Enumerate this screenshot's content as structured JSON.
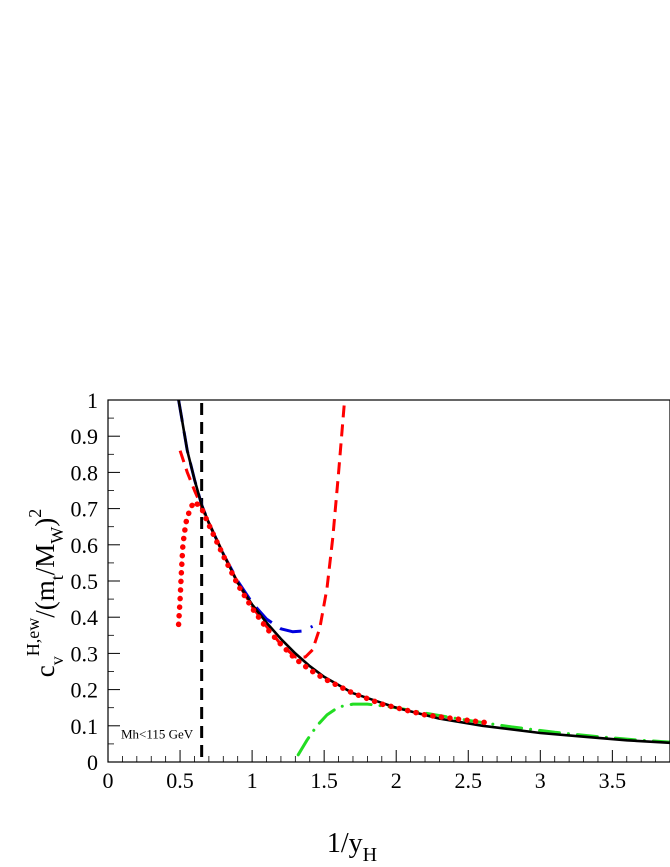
{
  "chart_data": {
    "type": "line",
    "xlabel": {
      "main": "1/y",
      "sub": "H"
    },
    "ylabel": {
      "c": "c",
      "c_sub": "v",
      "c_sup": "H,ew",
      "mid1": "/(m",
      "t_sub": "t",
      "mid2": "/M",
      "w_sub": "W",
      "close": ")",
      "sq": "2"
    },
    "xlim": [
      0,
      3.9
    ],
    "ylim": [
      0,
      1
    ],
    "x_ticks": [
      "0",
      "0.5",
      "1",
      "1.5",
      "2",
      "2.5",
      "3",
      "3.5"
    ],
    "x_tick_values": [
      0,
      0.5,
      1,
      1.5,
      2,
      2.5,
      3,
      3.5
    ],
    "y_ticks": [
      "0",
      "0.1",
      "0.2",
      "0.3",
      "0.4",
      "0.5",
      "0.6",
      "0.7",
      "0.8",
      "0.9",
      "1"
    ],
    "y_tick_values": [
      0,
      0.1,
      0.2,
      0.3,
      0.4,
      0.5,
      0.6,
      0.7,
      0.8,
      0.9,
      1
    ],
    "grid": false,
    "annotations": [
      {
        "text": "Mh<115 GeV",
        "x": 0.09,
        "y": 0.065
      }
    ],
    "vline": {
      "x": 0.65,
      "color": "#000000",
      "style": "dashed"
    },
    "series": [
      {
        "style": "solid",
        "color": "#000000",
        "x": [
          0.49,
          0.55,
          0.6,
          0.65,
          0.7,
          0.8,
          0.9,
          1.0,
          1.1,
          1.2,
          1.3,
          1.4,
          1.5,
          1.7,
          2.0,
          2.3,
          2.6,
          3.0,
          3.3,
          3.6,
          3.9
        ],
        "y": [
          1.0,
          0.86,
          0.78,
          0.71,
          0.66,
          0.575,
          0.495,
          0.435,
          0.385,
          0.34,
          0.3,
          0.265,
          0.235,
          0.19,
          0.15,
          0.12,
          0.1,
          0.08,
          0.07,
          0.06,
          0.053
        ]
      },
      {
        "style": "long-dash",
        "color": "#0000dd",
        "x": [
          0.49,
          0.55,
          0.6,
          0.65,
          0.7,
          0.8,
          0.9,
          1.0,
          1.1,
          1.2,
          1.28,
          1.35,
          1.42
        ],
        "y": [
          1.0,
          0.86,
          0.78,
          0.71,
          0.66,
          0.575,
          0.5,
          0.44,
          0.395,
          0.368,
          0.36,
          0.362,
          0.375
        ]
      },
      {
        "style": "dashed",
        "color": "#ff0000",
        "x": [
          0.5,
          0.55,
          0.6,
          0.65,
          0.7,
          0.8,
          0.9,
          1.0,
          1.1,
          1.2,
          1.3,
          1.37,
          1.42,
          1.47,
          1.52,
          1.56,
          1.6,
          1.64
        ],
        "y": [
          0.86,
          0.8,
          0.75,
          0.705,
          0.66,
          0.575,
          0.495,
          0.43,
          0.375,
          0.325,
          0.29,
          0.29,
          0.31,
          0.37,
          0.48,
          0.62,
          0.8,
          0.99
        ]
      },
      {
        "style": "dotted",
        "color": "#ff0000",
        "x": [
          0.49,
          0.5,
          0.51,
          0.52,
          0.54,
          0.57,
          0.6,
          0.65,
          0.7,
          0.8,
          0.9,
          1.0,
          1.1,
          1.2,
          1.3,
          1.4,
          1.5,
          1.6,
          1.7,
          1.8,
          1.9,
          2.0,
          2.1,
          2.2,
          2.3,
          2.4,
          2.5,
          2.6,
          2.65
        ],
        "y": [
          0.38,
          0.45,
          0.53,
          0.6,
          0.66,
          0.7,
          0.72,
          0.7,
          0.655,
          0.57,
          0.49,
          0.425,
          0.37,
          0.325,
          0.285,
          0.255,
          0.23,
          0.21,
          0.19,
          0.175,
          0.16,
          0.15,
          0.14,
          0.13,
          0.125,
          0.12,
          0.115,
          0.11,
          0.108
        ]
      },
      {
        "style": "dash-dot",
        "color": "#22dd22",
        "x": [
          1.32,
          1.38,
          1.45,
          1.52,
          1.6,
          1.7,
          1.8,
          2.0,
          2.2,
          2.5,
          2.8,
          3.1,
          3.4,
          3.7,
          3.9
        ],
        "y": [
          0.02,
          0.06,
          0.1,
          0.13,
          0.152,
          0.16,
          0.16,
          0.15,
          0.135,
          0.115,
          0.097,
          0.082,
          0.07,
          0.06,
          0.055
        ]
      }
    ]
  }
}
